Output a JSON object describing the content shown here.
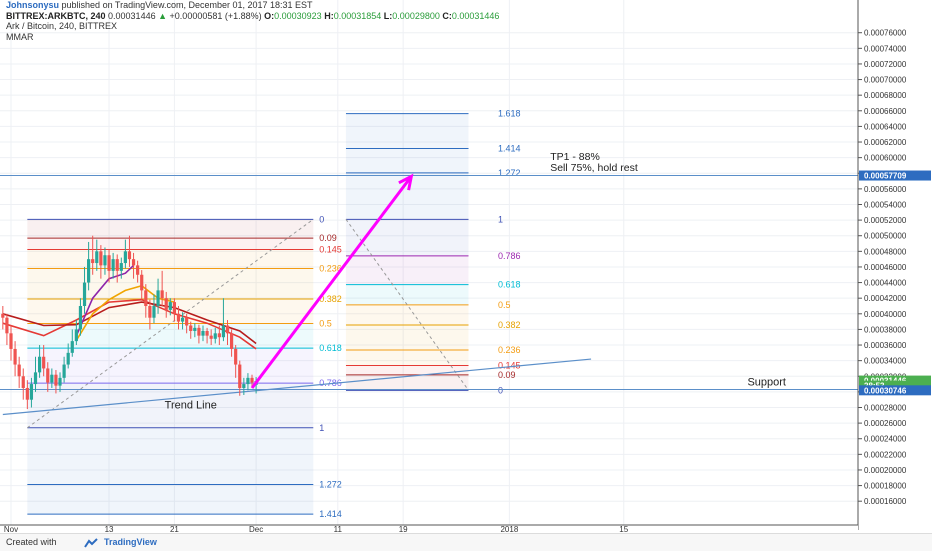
{
  "header": {
    "author": "Johnsonysu",
    "published": "published on TradingView.com, December 01, 2017 18:31 EST",
    "symbol": "BITTREX:ARKBTC, 240",
    "price": "0.00031446",
    "change_arrow": "▲",
    "change": "+0.00000581 (+1.88%)",
    "o_label": "O:",
    "o_value": "0.00030923",
    "h_label": "H:",
    "h_value": "0.00031854",
    "l_label": "L:",
    "l_value": "0.00029800",
    "c_label": "C:",
    "c_value": "0.00031446",
    "pane_title": "Ark / Bitcoin, 240, BITTREX",
    "indicator": "MMAR"
  },
  "footer": {
    "created_with": "Created with",
    "brand": "TradingView"
  },
  "colors": {
    "candle_up": "#26a69a",
    "candle_down": "#ef5350",
    "projection_arrow": "#ff00ff",
    "fib_retracement": "#6b6bd6",
    "trend_line": "#5b8fc9",
    "price_tag": "#4caf50",
    "target_tag": "#2d6cc0"
  },
  "chart_data": {
    "type": "candlestick",
    "y_axis": {
      "min": 0.00015,
      "max": 0.000775,
      "ticks": [
        "0.00076000",
        "0.00074000",
        "0.00072000",
        "0.00070000",
        "0.00068000",
        "0.00066000",
        "0.00064000",
        "0.00062000",
        "0.00060000",
        "0.00058000",
        "0.00056000",
        "0.00054000",
        "0.00052000",
        "0.00050000",
        "0.00048000",
        "0.00046000",
        "0.00044000",
        "0.00042000",
        "0.00040000",
        "0.00038000",
        "0.00036000",
        "0.00034000",
        "0.00032000",
        "0.00030000",
        "0.00028000",
        "0.00026000",
        "0.00024000",
        "0.00022000",
        "0.00020000",
        "0.00018000",
        "0.00016000"
      ]
    },
    "x_axis": {
      "ticks": [
        {
          "label": "Nov",
          "day": 0
        },
        {
          "label": "13",
          "day": 12
        },
        {
          "label": "21",
          "day": 20
        },
        {
          "label": "Dec",
          "day": 30
        },
        {
          "label": "11",
          "day": 40
        },
        {
          "label": "19",
          "day": 48
        },
        {
          "label": "2018",
          "day": 61
        },
        {
          "label": "15",
          "day": 75
        }
      ],
      "day_range": [
        0,
        84
      ]
    },
    "price_tags": [
      {
        "label": "0.00057709",
        "value": 0.00057709,
        "role": "target"
      },
      {
        "label": "0.00031446",
        "value": 0.00031446,
        "role": "last"
      },
      {
        "label": "28:53",
        "value": 0.000308,
        "role": "countdown"
      },
      {
        "label": "0.00030746",
        "value": 0.000302,
        "role": "support"
      }
    ],
    "fib_retracement": {
      "day_start": 2,
      "day_end": 37,
      "high": 0.000521,
      "low": 0.000254,
      "levels": [
        {
          "ratio": 0,
          "label": "0",
          "color": "#3f51b5"
        },
        {
          "ratio": 0.09,
          "label": "0.09",
          "color": "#a52a2a"
        },
        {
          "ratio": 0.145,
          "label": "0.145",
          "color": "#e53935"
        },
        {
          "ratio": 0.236,
          "label": "0.236",
          "color": "#f39c12"
        },
        {
          "ratio": 0.382,
          "label": "0.382",
          "color": "#e6a100"
        },
        {
          "ratio": 0.5,
          "label": "0.5",
          "color": "#f39c12"
        },
        {
          "ratio": 0.618,
          "label": "0.618",
          "color": "#00bcd4"
        },
        {
          "ratio": 0.786,
          "label": "0.786",
          "color": "#7b68ee"
        },
        {
          "ratio": 1,
          "label": "1",
          "color": "#3f51b5"
        },
        {
          "ratio": 1.272,
          "label": "1.272",
          "color": "#2d6cc0"
        },
        {
          "ratio": 1.414,
          "label": "1.414",
          "color": "#2d6cc0"
        }
      ]
    },
    "fib_extension": {
      "day_start": 41,
      "day_end": 56,
      "zero": 0.000302,
      "one": 0.000521,
      "levels": [
        {
          "ratio": 0,
          "label": "0",
          "color": "#3f51b5"
        },
        {
          "ratio": 0.09,
          "label": "0.09",
          "color": "#a52a2a"
        },
        {
          "ratio": 0.145,
          "label": "0.145",
          "color": "#e53935"
        },
        {
          "ratio": 0.236,
          "label": "0.236",
          "color": "#f39c12"
        },
        {
          "ratio": 0.382,
          "label": "0.382",
          "color": "#e6a100"
        },
        {
          "ratio": 0.5,
          "label": "0.5",
          "color": "#f39c12"
        },
        {
          "ratio": 0.618,
          "label": "0.618",
          "color": "#00bcd4"
        },
        {
          "ratio": 0.786,
          "label": "0.786",
          "color": "#9c27b0"
        },
        {
          "ratio": 1,
          "label": "1",
          "color": "#3f51b5"
        },
        {
          "ratio": 1.272,
          "label": "1.272",
          "color": "#2d6cc0"
        },
        {
          "ratio": 1.414,
          "label": "1.414",
          "color": "#2d6cc0"
        },
        {
          "ratio": 1.618,
          "label": "1.618",
          "color": "#2d6cc0"
        }
      ]
    },
    "trend_line": {
      "label": "Trend Line",
      "from": {
        "day": -1,
        "value": 0.000271
      },
      "to": {
        "day": 71,
        "value": 0.000342
      }
    },
    "support_line": {
      "label": "Support",
      "value": 0.000303
    },
    "target_line": {
      "value": 0.00057709
    },
    "projection_arrow": {
      "from": {
        "day": 29.5,
        "value": 0.000305
      },
      "to": {
        "day": 49,
        "value": 0.000576
      }
    },
    "annotations": [
      {
        "text": "TP1 - 88%",
        "day": 66,
        "value": 0.000597
      },
      {
        "text": "Sell 75%, hold rest",
        "day": 66,
        "value": 0.000583
      }
    ],
    "moving_averages": [
      {
        "color": "#e53935",
        "points": [
          [
            -1,
            0.000388
          ],
          [
            4,
            0.000372
          ],
          [
            8,
            0.000392
          ],
          [
            12,
            0.000415
          ],
          [
            16,
            0.000418
          ],
          [
            20,
            0.0004
          ],
          [
            24,
            0.000388
          ],
          [
            28,
            0.00037
          ],
          [
            30,
            0.000355
          ]
        ]
      },
      {
        "color": "#b71c1c",
        "points": [
          [
            -1,
            0.0004
          ],
          [
            4,
            0.000385
          ],
          [
            8,
            0.000386
          ],
          [
            12,
            0.000408
          ],
          [
            16,
            0.000415
          ],
          [
            20,
            0.000408
          ],
          [
            24,
            0.000392
          ],
          [
            28,
            0.000378
          ],
          [
            30,
            0.000362
          ]
        ]
      },
      {
        "color": "#8e24aa",
        "points": [
          [
            8,
            0.000372
          ],
          [
            10,
            0.00042
          ],
          [
            12,
            0.000445
          ],
          [
            14,
            0.000452
          ],
          [
            15,
            0.000462
          ]
        ]
      },
      {
        "color": "#f0a500",
        "points": [
          [
            8,
            0.000366
          ],
          [
            10,
            0.0004
          ],
          [
            12,
            0.000418
          ],
          [
            14,
            0.00043
          ],
          [
            16,
            0.000436
          ],
          [
            18,
            0.00042
          ],
          [
            20,
            0.000415
          ]
        ]
      }
    ],
    "candles": [
      [
        -1,
        0.0004,
        0.000395,
        0.00041,
        0.00038
      ],
      [
        -0.5,
        0.000395,
        0.000375,
        0.0004,
        0.00036
      ],
      [
        0,
        0.000375,
        0.000355,
        0.000385,
        0.00034
      ],
      [
        0.5,
        0.000355,
        0.000335,
        0.000365,
        0.00032
      ],
      [
        1,
        0.000335,
        0.00032,
        0.000345,
        0.000305
      ],
      [
        1.5,
        0.00032,
        0.000305,
        0.00033,
        0.00029
      ],
      [
        2,
        0.000305,
        0.00029,
        0.000315,
        0.000278
      ],
      [
        2.5,
        0.00029,
        0.00031,
        0.000318,
        0.00028
      ],
      [
        3,
        0.00031,
        0.000325,
        0.000345,
        0.0003
      ],
      [
        3.5,
        0.000325,
        0.000345,
        0.00036,
        0.000318
      ],
      [
        4,
        0.000345,
        0.00033,
        0.00036,
        0.00032
      ],
      [
        4.5,
        0.00033,
        0.000312,
        0.000338,
        0.0003
      ],
      [
        5,
        0.000312,
        0.000322,
        0.00033,
        0.000305
      ],
      [
        5.5,
        0.000322,
        0.000308,
        0.000328,
        0.000298
      ],
      [
        6,
        0.000308,
        0.000318,
        0.000325,
        0.0003
      ],
      [
        6.5,
        0.000318,
        0.000335,
        0.000345,
        0.000312
      ],
      [
        7,
        0.000335,
        0.00035,
        0.000362,
        0.00033
      ],
      [
        7.5,
        0.00035,
        0.000365,
        0.00038,
        0.000345
      ],
      [
        8,
        0.000365,
        0.00038,
        0.000392,
        0.00036
      ],
      [
        8.5,
        0.00038,
        0.00041,
        0.00042,
        0.000372
      ],
      [
        9,
        0.00041,
        0.00044,
        0.00046,
        0.0004
      ],
      [
        9.5,
        0.00044,
        0.00047,
        0.000492,
        0.00043
      ],
      [
        10,
        0.00047,
        0.000465,
        0.0005,
        0.00045
      ],
      [
        10.5,
        0.000465,
        0.00048,
        0.000495,
        0.000455
      ],
      [
        11,
        0.00048,
        0.000462,
        0.000488,
        0.000445
      ],
      [
        11.5,
        0.000462,
        0.000475,
        0.000485,
        0.00045
      ],
      [
        12,
        0.000475,
        0.000455,
        0.000482,
        0.00044
      ],
      [
        12.5,
        0.000455,
        0.00047,
        0.000478,
        0.000445
      ],
      [
        13,
        0.00047,
        0.000455,
        0.000476,
        0.00044
      ],
      [
        13.5,
        0.000455,
        0.000465,
        0.000472,
        0.000445
      ],
      [
        14,
        0.000465,
        0.00048,
        0.000495,
        0.000458
      ],
      [
        14.5,
        0.00048,
        0.00047,
        0.0005,
        0.00046
      ],
      [
        15,
        0.00047,
        0.000462,
        0.000478,
        0.000445
      ],
      [
        15.5,
        0.000462,
        0.00045,
        0.000468,
        0.00044
      ],
      [
        16,
        0.00045,
        0.00043,
        0.000456,
        0.000418
      ],
      [
        16.5,
        0.00043,
        0.00041,
        0.000438,
        0.000395
      ],
      [
        17,
        0.00041,
        0.000395,
        0.000418,
        0.00038
      ],
      [
        17.5,
        0.000395,
        0.00041,
        0.000425,
        0.000388
      ],
      [
        18,
        0.00041,
        0.00043,
        0.000445,
        0.0004
      ],
      [
        18.5,
        0.00043,
        0.00042,
        0.000455,
        0.00041
      ],
      [
        19,
        0.00042,
        0.000405,
        0.000428,
        0.000395
      ],
      [
        19.5,
        0.000405,
        0.000415,
        0.00042,
        0.000398
      ],
      [
        20,
        0.000415,
        0.0004,
        0.00042,
        0.00039
      ],
      [
        20.5,
        0.0004,
        0.00039,
        0.00041,
        0.00038
      ],
      [
        21,
        0.00039,
        0.000395,
        0.000402,
        0.00038
      ],
      [
        21.5,
        0.000395,
        0.000385,
        0.0004,
        0.000375
      ],
      [
        22,
        0.000385,
        0.000378,
        0.00039,
        0.000368
      ],
      [
        22.5,
        0.000378,
        0.000382,
        0.000388,
        0.00037
      ],
      [
        23,
        0.000382,
        0.000372,
        0.000386,
        0.000362
      ],
      [
        23.5,
        0.000372,
        0.000378,
        0.000385,
        0.000365
      ],
      [
        24,
        0.000378,
        0.000372,
        0.000382,
        0.000362
      ],
      [
        24.5,
        0.000372,
        0.000368,
        0.00038,
        0.00036
      ],
      [
        25,
        0.000368,
        0.000375,
        0.000382,
        0.000362
      ],
      [
        25.5,
        0.000375,
        0.00037,
        0.000385,
        0.00036
      ],
      [
        26,
        0.00037,
        0.000385,
        0.00042,
        0.000365
      ],
      [
        26.5,
        0.000385,
        0.000375,
        0.000392,
        0.00036
      ],
      [
        27,
        0.000375,
        0.000355,
        0.00038,
        0.000345
      ],
      [
        27.5,
        0.000355,
        0.000335,
        0.00036,
        0.000318
      ],
      [
        28,
        0.000335,
        0.000305,
        0.00034,
        0.000295
      ],
      [
        28.5,
        0.000305,
        0.00031,
        0.000318,
        0.000296
      ],
      [
        29,
        0.00031,
        0.000318,
        0.000324,
        0.000302
      ],
      [
        29.5,
        0.000318,
        0.000312,
        0.000322,
        0.000305
      ],
      [
        30,
        0.000309,
        0.000314,
        0.000319,
        0.000298
      ]
    ]
  }
}
